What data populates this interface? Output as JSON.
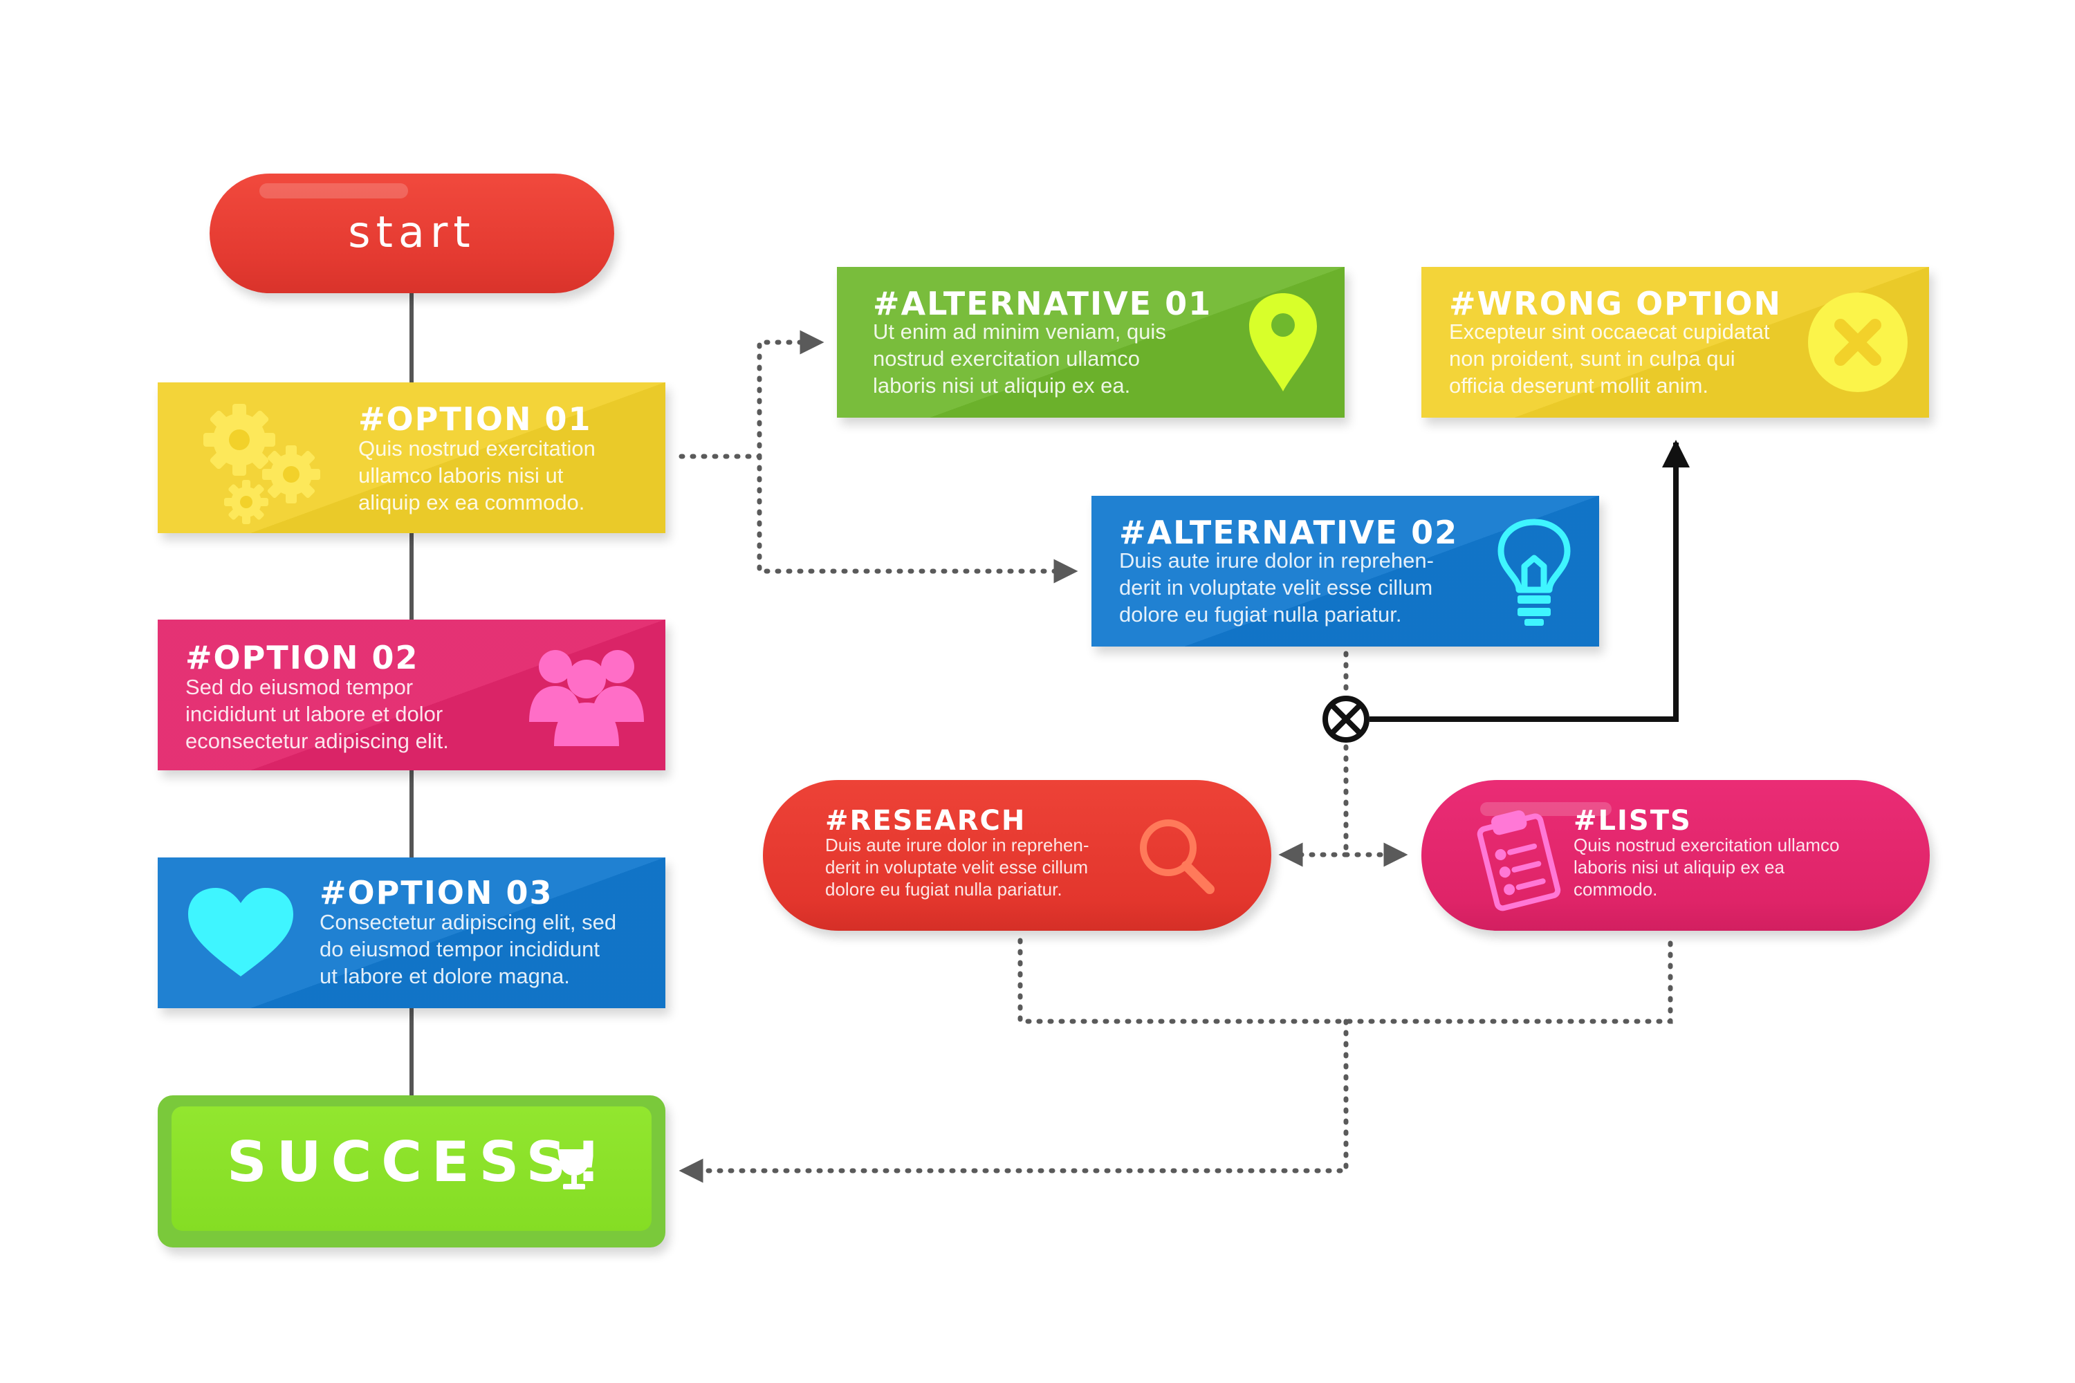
{
  "colors": {
    "red": "#e8392f",
    "yellow": "#f2d12a",
    "magenta": "#e3256b",
    "blue": "#1279cf",
    "green": "#6fb82d",
    "lime": "#8ae02a",
    "connector_dotted": "#5a5a5a",
    "connector_solid": "#111111"
  },
  "start": {
    "label": "start"
  },
  "option01": {
    "title": "#OPTION 01",
    "body": "Quis nostrud exercitation\nullamco laboris nisi ut\naliquip ex ea commodo.",
    "icon": "gears-icon"
  },
  "option02": {
    "title": "#OPTION 02",
    "body": "Sed do eiusmod tempor\nincididunt ut labore et dolor\neconsectetur adipiscing elit.",
    "icon": "people-group-icon"
  },
  "option03": {
    "title": "#OPTION 03",
    "body": "Consectetur adipiscing elit, sed\ndo eiusmod tempor incididunt\nut labore et dolore magna.",
    "icon": "heart-icon"
  },
  "alternative01": {
    "title": "#ALTERNATIVE 01",
    "body": "Ut enim ad minim veniam, quis\nnostrud exercitation ullamco\nlaboris nisi ut aliquip ex ea.",
    "icon": "location-pin-icon"
  },
  "alternative02": {
    "title": "#ALTERNATIVE 02",
    "body": "Duis aute irure dolor in reprehen-\nderit in voluptate velit esse cillum\ndolore eu fugiat nulla pariatur.",
    "icon": "lightbulb-icon"
  },
  "wrong_option": {
    "title": "#WRONG OPTION",
    "body": "Excepteur sint occaecat cupidatat\nnon proident, sunt in culpa qui\nofficia deserunt mollit anim.",
    "icon": "x-circle-icon"
  },
  "research": {
    "title": "#RESEARCH",
    "body": "Duis aute irure dolor in reprehen-\nderit in voluptate velit esse cillum\ndolore eu fugiat nulla pariatur.",
    "icon": "magnifier-icon"
  },
  "lists": {
    "title": "#LISTS",
    "body": "Quis nostrud exercitation ullamco\nlaboris nisi ut aliquip ex ea\ncommodo.",
    "icon": "clipboard-checklist-icon"
  },
  "success": {
    "label": "SUCCESS!",
    "icon": "trophy-icon"
  }
}
